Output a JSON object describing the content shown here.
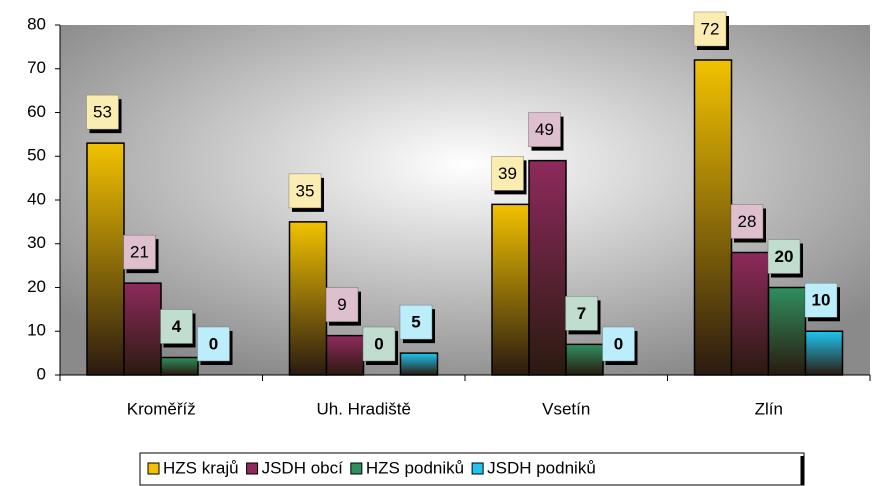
{
  "chart_data": {
    "type": "bar",
    "categories": [
      "Kroměříž",
      "Uh. Hradiště",
      "Vsetín",
      "Zlín"
    ],
    "series": [
      {
        "name": "HZS krajů",
        "color": "#f2c200",
        "values": [
          53,
          35,
          39,
          72
        ]
      },
      {
        "name": "JSDH obcí",
        "color": "#8e2a5c",
        "values": [
          21,
          9,
          49,
          28
        ]
      },
      {
        "name": "HZS podniků",
        "color": "#2f8f5f",
        "values": [
          4,
          0,
          7,
          20
        ]
      },
      {
        "name": "JSDH podniků",
        "color": "#1ec6f0",
        "values": [
          0,
          5,
          0,
          10
        ]
      }
    ],
    "ylim": [
      0,
      80
    ],
    "yticks": [
      0,
      10,
      20,
      30,
      40,
      50,
      60,
      70,
      80
    ],
    "legend": "bottom"
  }
}
